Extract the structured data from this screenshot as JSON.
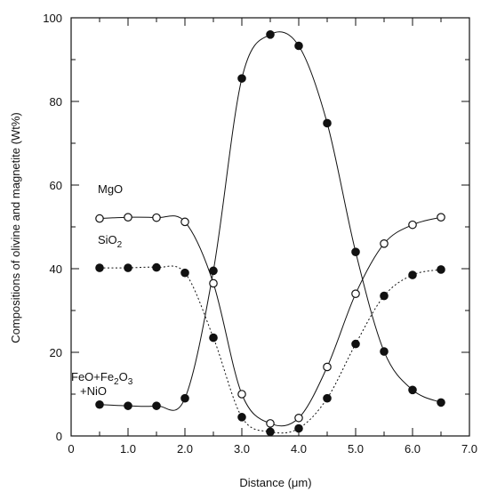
{
  "chart_data": {
    "type": "line",
    "xlabel": "Distance (μm)",
    "ylabel": "Compositions of olivine and magnetite (Wt%)",
    "xlim": [
      0,
      7.0
    ],
    "ylim": [
      0,
      100
    ],
    "x_ticks": [
      "0",
      "1.0",
      "2.0",
      "3.0",
      "4.0",
      "5.0",
      "6.0",
      "7.0"
    ],
    "y_ticks": [
      "0",
      "20",
      "40",
      "60",
      "80",
      "100"
    ],
    "grid": false,
    "series": [
      {
        "name": "MgO",
        "marker": "open-circle",
        "line": "solid",
        "x": [
          0.5,
          1.0,
          1.5,
          2.0,
          2.5,
          3.0,
          3.5,
          4.0,
          4.5,
          5.0,
          5.5,
          6.0,
          6.5
        ],
        "y": [
          52,
          52.3,
          52.2,
          51.2,
          36.5,
          10,
          3,
          4.3,
          16.5,
          34,
          46,
          50.5,
          52.3
        ]
      },
      {
        "name": "SiO2",
        "marker": "filled-circle",
        "line": "dotted",
        "x": [
          0.5,
          1.0,
          1.5,
          2.0,
          2.5,
          3.0,
          3.5,
          4.0,
          4.5,
          5.0,
          5.5,
          6.0,
          6.5
        ],
        "y": [
          40.2,
          40.2,
          40.3,
          39,
          23.5,
          4.5,
          1,
          1.8,
          9,
          22,
          33.5,
          38.5,
          39.8
        ]
      },
      {
        "name": "FeO+Fe2O3+NiO",
        "marker": "filled-circle",
        "line": "solid",
        "x": [
          0.5,
          1.0,
          1.5,
          2.0,
          2.5,
          3.0,
          3.5,
          4.0,
          4.5,
          5.0,
          5.5,
          6.0,
          6.5
        ],
        "y": [
          7.5,
          7.2,
          7.2,
          9,
          39.5,
          85.5,
          96,
          93.3,
          74.8,
          44,
          20.2,
          11,
          8
        ]
      }
    ],
    "labels": {
      "mgo": "MgO",
      "sio2_main": "SiO",
      "sio2_sub": "2",
      "fe_line1_a": "FeO+Fe",
      "fe_line1_b": "2",
      "fe_line1_c": "O",
      "fe_line1_d": "3",
      "fe_line2": "+NiO"
    }
  }
}
